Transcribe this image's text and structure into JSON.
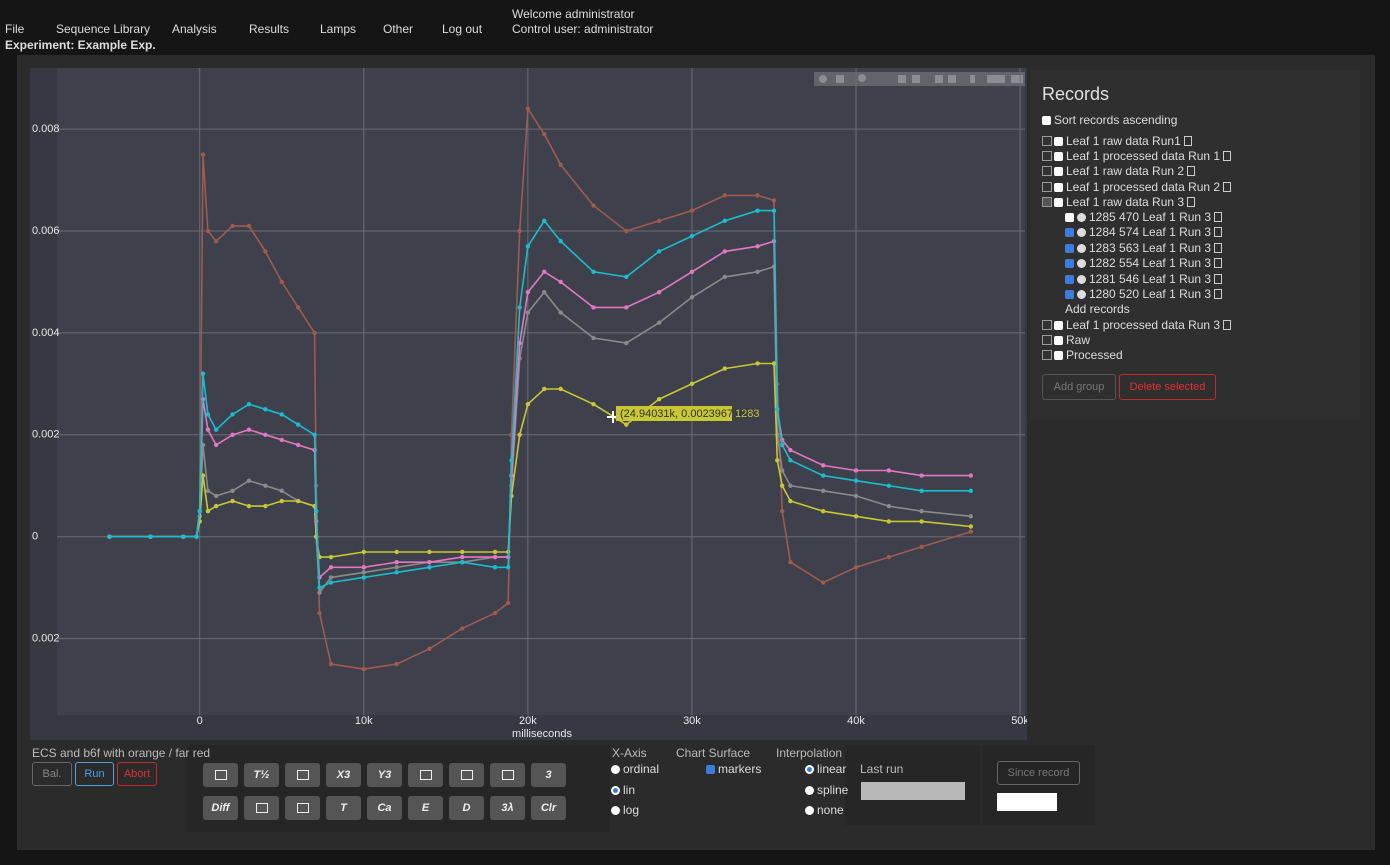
{
  "nav": {
    "items": [
      "File",
      "Sequence Library",
      "Analysis",
      "Results",
      "Lamps",
      "Other",
      "Log out"
    ],
    "welcome": "Welcome administrator",
    "control_user": "Control user: administrator",
    "experiment": "Experiment: Example Exp."
  },
  "records": {
    "title": "Records",
    "sort_label": "Sort records ascending",
    "sort_checked": false,
    "groups": [
      {
        "label": "Leaf 1 raw data Run1",
        "deletable": true,
        "expanded": false
      },
      {
        "label": "Leaf 1 processed data Run 1",
        "deletable": true,
        "expanded": false
      },
      {
        "label": "Leaf 1 raw data Run 2",
        "deletable": true,
        "expanded": false
      },
      {
        "label": "Leaf 1 processed data Run 2",
        "deletable": true,
        "expanded": false
      },
      {
        "label": "Leaf 1 raw data Run 3",
        "deletable": true,
        "expanded": true,
        "add_records": "Add records",
        "children": [
          {
            "label": "1285 470 Leaf 1 Run 3",
            "checked": false
          },
          {
            "label": "1284 574 Leaf 1 Run 3",
            "checked": true
          },
          {
            "label": "1283 563 Leaf 1 Run 3",
            "checked": true
          },
          {
            "label": "1282 554 Leaf 1 Run 3",
            "checked": true
          },
          {
            "label": "1281 546 Leaf 1 Run 3",
            "checked": true
          },
          {
            "label": "1280 520 Leaf 1 Run 3",
            "checked": true
          }
        ]
      },
      {
        "label": "Leaf 1 processed data Run 3",
        "deletable": true,
        "expanded": false
      },
      {
        "label": "Raw",
        "deletable": false,
        "expanded": false
      },
      {
        "label": "Processed",
        "deletable": false,
        "expanded": false
      }
    ],
    "buttons": [
      "Add group",
      "Delete selected"
    ]
  },
  "chart_data": {
    "type": "line",
    "xlabel": "milliseconds",
    "grid": true,
    "markers": true,
    "xlim": [
      -8700,
      50300
    ],
    "xticks": [
      0,
      {
        "value": 10000,
        "label": "10k"
      },
      {
        "value": 20000,
        "label": "20k"
      },
      {
        "value": 30000,
        "label": "30k"
      },
      {
        "value": 40000,
        "label": "40k"
      },
      {
        "value": 50000,
        "label": "50k"
      }
    ],
    "ylim": [
      -0.0035,
      0.0092
    ],
    "yticks": [
      {
        "value": -0.002,
        "label": "0.002"
      },
      0,
      0.002,
      0.004,
      0.006,
      0.008
    ],
    "x": [
      -5500,
      -3000,
      -1000,
      -200,
      0,
      200,
      500,
      1000,
      2000,
      3000,
      4000,
      5000,
      6000,
      7000,
      7100,
      7300,
      8000,
      10000,
      12000,
      14000,
      16000,
      18000,
      18800,
      19000,
      19500,
      20000,
      21000,
      22000,
      24000,
      26000,
      28000,
      30000,
      32000,
      34000,
      35000,
      35200,
      35500,
      36000,
      38000,
      40000,
      42000,
      44000,
      47000
    ],
    "series": [
      {
        "color": "#a05a4e",
        "values": [
          0,
          0,
          0,
          0,
          0.0005,
          0.0075,
          0.006,
          0.0058,
          0.0061,
          0.0061,
          0.0056,
          0.005,
          0.0045,
          0.004,
          0.001,
          -0.0015,
          -0.0025,
          -0.0026,
          -0.0025,
          -0.0022,
          -0.0018,
          -0.0015,
          -0.0013,
          0.002,
          0.006,
          0.0084,
          0.0079,
          0.0073,
          0.0065,
          0.006,
          0.0062,
          0.0064,
          0.0067,
          0.0067,
          0.0066,
          0.003,
          0.0005,
          -0.0005,
          -0.0009,
          -0.0006,
          -0.0004,
          -0.0002,
          0.0001
        ]
      },
      {
        "color": "#8a8a8a",
        "values": [
          0,
          0,
          0,
          0,
          0.0004,
          0.0018,
          0.0009,
          0.0008,
          0.0009,
          0.0011,
          0.001,
          0.0009,
          0.0007,
          0.0006,
          0,
          -0.0011,
          -0.0008,
          -0.0007,
          -0.0006,
          -0.0005,
          -0.0005,
          -0.0004,
          -0.0004,
          0.001,
          0.0035,
          0.0044,
          0.0048,
          0.0044,
          0.0039,
          0.0038,
          0.0042,
          0.0047,
          0.0051,
          0.0052,
          0.0053,
          0.002,
          0.0013,
          0.001,
          0.0009,
          0.0008,
          0.0006,
          0.0005,
          0.0004
        ]
      },
      {
        "color": "#c8c832",
        "values": [
          0,
          0,
          0,
          0,
          0.0003,
          0.0012,
          0.0005,
          0.0006,
          0.0007,
          0.0006,
          0.0006,
          0.0007,
          0.0007,
          0.0006,
          0,
          -0.0004,
          -0.0004,
          -0.0003,
          -0.0003,
          -0.0003,
          -0.0003,
          -0.0003,
          -0.0003,
          0.0008,
          0.002,
          0.0026,
          0.0029,
          0.0029,
          0.0026,
          0.0022,
          0.0027,
          0.003,
          0.0033,
          0.0034,
          0.0034,
          0.0015,
          0.001,
          0.0007,
          0.0005,
          0.0004,
          0.0003,
          0.0003,
          0.0002
        ]
      },
      {
        "color": "#e377c2",
        "values": [
          0,
          0,
          0,
          0,
          0.0005,
          0.0027,
          0.0021,
          0.0018,
          0.002,
          0.0021,
          0.002,
          0.0019,
          0.0018,
          0.0017,
          0.0003,
          -0.0008,
          -0.0006,
          -0.0006,
          -0.0005,
          -0.0005,
          -0.0004,
          -0.0004,
          -0.0004,
          0.0012,
          0.0038,
          0.0048,
          0.0052,
          0.005,
          0.0045,
          0.0045,
          0.0048,
          0.0052,
          0.0056,
          0.0057,
          0.0058,
          0.0025,
          0.0019,
          0.0017,
          0.0014,
          0.0013,
          0.0013,
          0.0012,
          0.0012
        ]
      },
      {
        "color": "#17becf",
        "values": [
          0,
          0,
          0,
          0,
          0.0005,
          0.0032,
          0.0024,
          0.0021,
          0.0024,
          0.0026,
          0.0025,
          0.0024,
          0.0022,
          0.002,
          0.0005,
          -0.001,
          -0.0009,
          -0.0008,
          -0.0007,
          -0.0006,
          -0.0005,
          -0.0006,
          -0.0006,
          0.0015,
          0.0045,
          0.0057,
          0.0062,
          0.0058,
          0.0052,
          0.0051,
          0.0056,
          0.0059,
          0.0062,
          0.0064,
          0.0064,
          0.0025,
          0.0018,
          0.0015,
          0.0012,
          0.0011,
          0.001,
          0.0009,
          0.0009
        ]
      }
    ],
    "tooltip": {
      "text": "(24.94031k, 0.002396718)",
      "name": "1283"
    }
  },
  "controls": {
    "caption": "ECS and b6f with orange / far red",
    "run_buttons": [
      "Bal.",
      "Run",
      "Abort"
    ],
    "toolbar": [
      [
        null,
        "T½",
        null,
        "X3",
        "Y3",
        null,
        null,
        null,
        "3"
      ],
      [
        "Diff",
        null,
        null,
        "T",
        "Ca",
        "E",
        "D",
        "3λ",
        "Clr"
      ]
    ],
    "xaxis": {
      "title": "X-Axis",
      "options": [
        {
          "label": "ordinal",
          "checked": false
        },
        {
          "label": "lin",
          "checked": true
        },
        {
          "label": "log",
          "checked": false
        }
      ]
    },
    "surface": {
      "title": "Chart Surface",
      "options": [
        {
          "label": "markers",
          "checked": true
        }
      ]
    },
    "interpolation": {
      "title": "Interpolation",
      "options": [
        {
          "label": "linear",
          "checked": true
        },
        {
          "label": "spline",
          "checked": false
        },
        {
          "label": "none",
          "checked": false
        }
      ]
    },
    "last_run": "Last run",
    "since_record": "Since record"
  }
}
